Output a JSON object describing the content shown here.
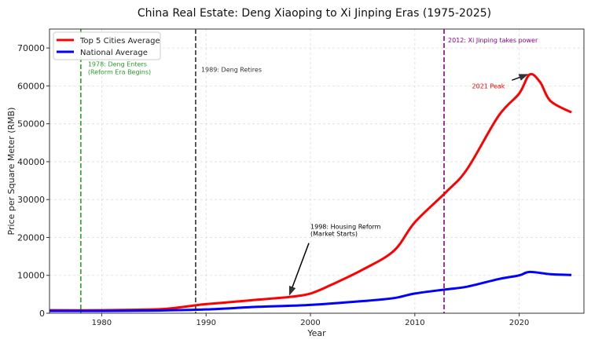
{
  "chart_data": {
    "type": "line",
    "title": "China Real Estate: Deng Xiaoping to Xi Jinping Eras (1975-2025)",
    "xlabel": "Year",
    "ylabel": "Price per Square Meter (RMB)",
    "xlim": [
      1975,
      2026.2
    ],
    "ylim": [
      0,
      75000
    ],
    "xticks": [
      1980,
      1990,
      2000,
      2010,
      2020
    ],
    "yticks": [
      0,
      10000,
      20000,
      30000,
      40000,
      50000,
      60000,
      70000
    ],
    "grid": true,
    "legend_position": "top-left",
    "series": [
      {
        "name": "Top 5 Cities Average",
        "color": "#ff0000",
        "x": [
          1975,
          1980,
          1985,
          1987,
          1989,
          1990,
          1993,
          1995,
          1998,
          2000,
          2002,
          2005,
          2008,
          2010,
          2013,
          2015,
          2018,
          2020,
          2021,
          2022,
          2023,
          2025
        ],
        "y": [
          800,
          800,
          1000,
          1400,
          2100,
          2400,
          3100,
          3600,
          4300,
          5200,
          7500,
          11500,
          16500,
          24000,
          32000,
          38000,
          52000,
          58000,
          63000,
          61000,
          56000,
          53000
        ]
      },
      {
        "name": "National Average",
        "color": "#0000ff",
        "x": [
          1975,
          1980,
          1985,
          1990,
          1995,
          2000,
          2005,
          2008,
          2010,
          2013,
          2015,
          2018,
          2020,
          2021,
          2023,
          2025
        ],
        "y": [
          600,
          600,
          700,
          1000,
          1700,
          2200,
          3200,
          4000,
          5200,
          6300,
          7000,
          9000,
          10000,
          10900,
          10300,
          10100
        ]
      }
    ],
    "vlines": [
      {
        "x": 1978,
        "color": "#2ca02c",
        "label": "1978: Deng Enters\n(Reform Era Begins)"
      },
      {
        "x": 1989,
        "color": "#333333",
        "label": "1989: Deng Retires"
      },
      {
        "x": 2012.8,
        "color": "#8b008b",
        "label": "2012: Xi Jinping takes power"
      }
    ],
    "annotations": [
      {
        "text": "1998: Housing Reform\n(Market Starts)",
        "x": 1998,
        "y": 4300,
        "text_x": 2000,
        "text_y": 21000,
        "color": "#000000"
      },
      {
        "text": "2021 Peak",
        "x": 2021,
        "y": 63000,
        "text_x": 2016,
        "text_y": 60000,
        "color": "#ff0000"
      }
    ]
  }
}
